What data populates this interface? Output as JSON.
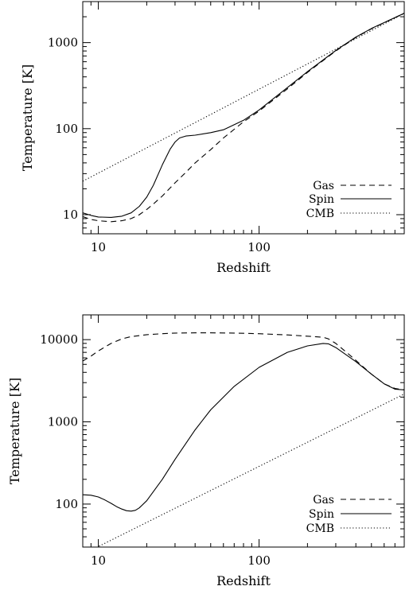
{
  "chart_data": [
    {
      "type": "line",
      "xscale": "log",
      "yscale": "log",
      "xlim": [
        8,
        800
      ],
      "ylim": [
        6,
        3000
      ],
      "xlabel": "Redshift",
      "ylabel": "Temperature [K]",
      "x_ticks": [
        {
          "value": 10,
          "label": "10"
        },
        {
          "value": 100,
          "label": "100"
        }
      ],
      "y_ticks": [
        {
          "value": 10,
          "label": "10"
        },
        {
          "value": 100,
          "label": "100"
        },
        {
          "value": 1000,
          "label": "1000"
        }
      ],
      "legend_position": "bottom-right",
      "series": [
        {
          "name": "Gas",
          "style": "dashed",
          "x": [
            8,
            9,
            10,
            12,
            14,
            16,
            18,
            20,
            22,
            25,
            28,
            30,
            35,
            40,
            50,
            60,
            80,
            100,
            150,
            200,
            300,
            400,
            500,
            600,
            800
          ],
          "y": [
            9.5,
            8.8,
            8.5,
            8.3,
            8.5,
            9.0,
            10.0,
            11.5,
            13.3,
            16.5,
            20.5,
            23.5,
            31,
            40,
            57,
            78,
            120,
            160,
            290,
            450,
            800,
            1150,
            1450,
            1700,
            2200
          ]
        },
        {
          "name": "Spin",
          "style": "solid",
          "x": [
            8,
            9,
            10,
            12,
            14,
            16,
            18,
            20,
            22,
            25,
            28,
            30,
            32,
            35,
            40,
            50,
            60,
            80,
            100,
            150,
            200,
            300,
            400,
            500,
            600,
            800
          ],
          "y": [
            10.5,
            9.8,
            9.4,
            9.3,
            9.6,
            10.5,
            12.5,
            16,
            22,
            38,
            58,
            70,
            78,
            82,
            84,
            90,
            97,
            125,
            165,
            300,
            460,
            810,
            1160,
            1460,
            1710,
            2200
          ]
        },
        {
          "name": "CMB",
          "style": "dotted",
          "x": [
            8,
            800
          ],
          "y": [
            24.5,
            2182.7
          ]
        }
      ]
    },
    {
      "type": "line",
      "xscale": "log",
      "yscale": "log",
      "xlim": [
        8,
        800
      ],
      "ylim": [
        30,
        20000
      ],
      "xlabel": "Redshift",
      "ylabel": "Temperature [K]",
      "x_ticks": [
        {
          "value": 10,
          "label": "10"
        },
        {
          "value": 100,
          "label": "100"
        }
      ],
      "y_ticks": [
        {
          "value": 100,
          "label": "100"
        },
        {
          "value": 1000,
          "label": "1000"
        },
        {
          "value": 10000,
          "label": "10000"
        }
      ],
      "legend_position": "bottom-right",
      "series": [
        {
          "name": "Gas",
          "style": "dashed",
          "x": [
            8,
            9,
            10,
            12,
            14,
            16,
            20,
            25,
            30,
            40,
            50,
            70,
            100,
            150,
            200,
            250,
            270,
            300,
            350,
            400,
            500,
            600,
            700,
            800
          ],
          "y": [
            5500,
            6300,
            7300,
            9000,
            10200,
            10900,
            11500,
            11800,
            12000,
            12100,
            12100,
            12000,
            11800,
            11400,
            11000,
            10700,
            10200,
            9000,
            7000,
            5600,
            3800,
            2900,
            2550,
            2450
          ]
        },
        {
          "name": "Spin",
          "style": "solid",
          "x": [
            8,
            9,
            10,
            11,
            12,
            13,
            14,
            15,
            16,
            17,
            18,
            20,
            25,
            30,
            40,
            50,
            70,
            100,
            150,
            200,
            250,
            270,
            300,
            400,
            500,
            600,
            700,
            800
          ],
          "y": [
            130,
            128,
            122,
            112,
            102,
            93,
            87,
            83,
            82,
            84,
            90,
            110,
            200,
            350,
            800,
            1400,
            2700,
            4600,
            7000,
            8400,
            9000,
            8900,
            8000,
            5400,
            3800,
            2900,
            2500,
            2450
          ]
        },
        {
          "name": "CMB",
          "style": "dotted",
          "x": [
            8,
            800
          ],
          "y": [
            24.5,
            2182.7
          ]
        }
      ]
    }
  ]
}
